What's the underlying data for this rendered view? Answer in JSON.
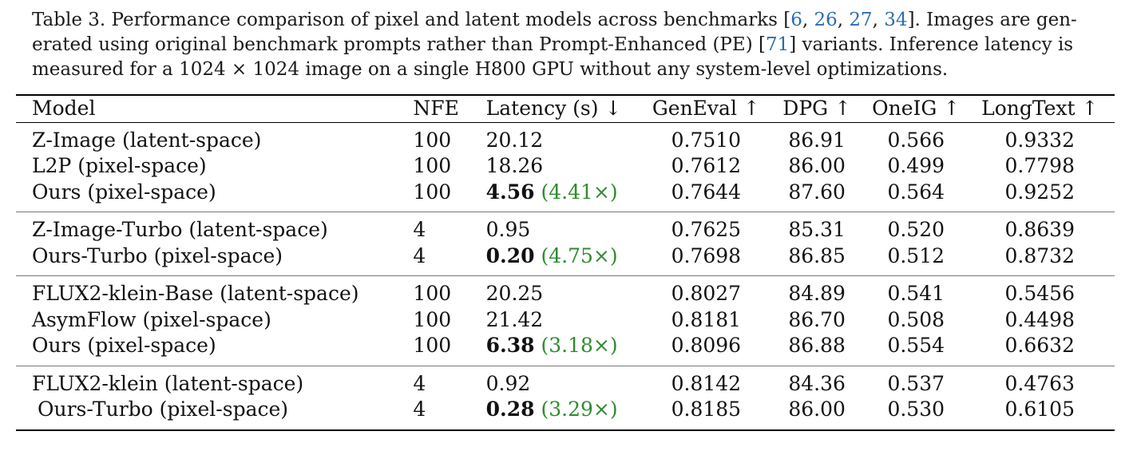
{
  "caption": {
    "line1_pre": "Table 3.  Performance comparison of pixel and latent models across benchmarks [",
    "refs": [
      "6",
      "26",
      "27",
      "34"
    ],
    "line1_post": "].  Images are gen-",
    "line2_pre": "erated using original benchmark prompts rather than Prompt-Enhanced (PE) [",
    "ref_pe": "71",
    "line2_post": "] variants.  Inference latency is",
    "line3": "measured for a 1024 × 1024 image on a single H800 GPU without any system-level optimizations."
  },
  "table": {
    "headers": [
      "Model",
      "NFE",
      "Latency (s) ↓",
      "GenEval ↑",
      "DPG ↑",
      "OneIG ↑",
      "LongText ↑"
    ],
    "groups": [
      [
        {
          "model": "Z-Image (latent-space)",
          "nfe": "100",
          "latency": "20.12",
          "speedup": "",
          "geneval": "0.7510",
          "dpg": "86.91",
          "oneig": "0.566",
          "longtext": "0.9332"
        },
        {
          "model": "L2P (pixel-space)",
          "nfe": "100",
          "latency": "18.26",
          "speedup": "",
          "geneval": "0.7612",
          "dpg": "86.00",
          "oneig": "0.499",
          "longtext": "0.7798"
        },
        {
          "model": "Ours (pixel-space)",
          "nfe": "100",
          "latency": "4.56",
          "speedup": "(4.41×)",
          "geneval": "0.7644",
          "dpg": "87.60",
          "oneig": "0.564",
          "longtext": "0.9252"
        }
      ],
      [
        {
          "model": "Z-Image-Turbo (latent-space)",
          "nfe": "4",
          "latency": "0.95",
          "speedup": "",
          "geneval": "0.7625",
          "dpg": "85.31",
          "oneig": "0.520",
          "longtext": "0.8639"
        },
        {
          "model": "Ours-Turbo (pixel-space)",
          "nfe": "4",
          "latency": "0.20",
          "speedup": "(4.75×)",
          "geneval": "0.7698",
          "dpg": "86.85",
          "oneig": "0.512",
          "longtext": "0.8732"
        }
      ],
      [
        {
          "model": "FLUX2-klein-Base (latent-space)",
          "nfe": "100",
          "latency": "20.25",
          "speedup": "",
          "geneval": "0.8027",
          "dpg": "84.89",
          "oneig": "0.541",
          "longtext": "0.5456"
        },
        {
          "model": "AsymFlow (pixel-space)",
          "nfe": "100",
          "latency": "21.42",
          "speedup": "",
          "geneval": "0.8181",
          "dpg": "86.70",
          "oneig": "0.508",
          "longtext": "0.4498"
        },
        {
          "model": "Ours (pixel-space)",
          "nfe": "100",
          "latency": "6.38",
          "speedup": "(3.18×)",
          "geneval": "0.8096",
          "dpg": "86.88",
          "oneig": "0.554",
          "longtext": "0.6632"
        }
      ],
      [
        {
          "model": "FLUX2-klein (latent-space)",
          "nfe": "4",
          "latency": "0.92",
          "speedup": "",
          "geneval": "0.8142",
          "dpg": "84.36",
          "oneig": "0.537",
          "longtext": "0.4763"
        },
        {
          "model": "Ours-Turbo (pixel-space)",
          "nfe": "4",
          "latency": "0.28",
          "speedup": "(3.29×)",
          "geneval": "0.8185",
          "dpg": "86.00",
          "oneig": "0.530",
          "longtext": "0.6105"
        }
      ]
    ]
  }
}
